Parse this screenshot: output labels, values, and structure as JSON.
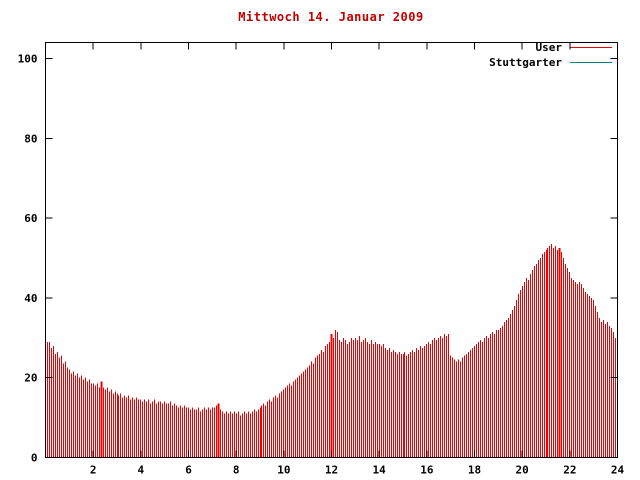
{
  "title": "Mittwoch 14. Januar 2009",
  "colors": {
    "title": "#c00000",
    "axis": "#000000",
    "background": "#ffffff",
    "user_series": "#ee0000",
    "stuttgarter_series": "#008080"
  },
  "chart_data": {
    "type": "bar",
    "style": "impulses",
    "title": "Mittwoch 14. Januar 2009",
    "xlabel": "",
    "ylabel": "",
    "x_unit": "hour_of_day",
    "interval_minutes": 5,
    "xlim": [
      0,
      24
    ],
    "ylim": [
      0,
      104
    ],
    "x_ticks": [
      2,
      4,
      6,
      8,
      10,
      12,
      14,
      16,
      18,
      20,
      22,
      24
    ],
    "y_ticks": [
      0,
      20,
      40,
      60,
      80,
      100
    ],
    "grid": false,
    "legend_position": "top-right-inside",
    "highlight_indices": [
      28,
      87,
      144,
      259
    ],
    "series": [
      {
        "name": "User",
        "color": "#ee0000",
        "style": "impulses",
        "values": [
          30,
          29,
          29,
          27.5,
          28,
          26,
          26.5,
          25,
          25.5,
          23.5,
          24,
          22.5,
          22,
          21,
          21.5,
          20.5,
          21,
          20,
          20.5,
          19.5,
          20,
          19,
          19.5,
          18.5,
          18.5,
          18,
          18.5,
          17.5,
          19,
          17.5,
          17,
          17.5,
          16.5,
          17,
          16,
          16.5,
          16,
          15.5,
          16,
          15,
          15.5,
          15,
          15.5,
          14.5,
          15,
          14.5,
          15,
          14.5,
          14.5,
          14,
          14.5,
          14,
          14.5,
          13.5,
          14,
          14.5,
          13.5,
          14,
          14,
          13.5,
          14,
          13.5,
          13.5,
          14,
          13,
          13.5,
          13,
          12.5,
          13,
          12.5,
          13,
          12.5,
          12.5,
          12,
          12.5,
          12,
          12,
          12.5,
          11.5,
          12,
          12.5,
          12,
          12.5,
          12,
          12.5,
          12.5,
          13,
          13.5,
          12,
          11.5,
          11,
          11.5,
          11,
          11.5,
          11,
          11.5,
          11,
          11.5,
          10.5,
          11,
          11.5,
          11,
          11.5,
          11,
          11.5,
          12,
          11.5,
          12,
          12.5,
          13,
          13.5,
          13,
          14,
          14.5,
          14,
          15,
          15.5,
          15,
          16,
          16.5,
          17,
          17.5,
          18,
          18.5,
          18,
          19,
          19.5,
          20,
          20.5,
          21,
          21.5,
          22,
          22.5,
          23,
          24,
          23.5,
          25,
          25.5,
          26,
          27,
          26.5,
          28,
          28.5,
          29,
          31,
          30,
          32,
          31.5,
          29.5,
          29,
          30,
          29.5,
          28.5,
          29,
          30,
          29.5,
          30,
          29.5,
          30.5,
          29,
          29.5,
          30,
          29,
          28.5,
          29.5,
          28.5,
          29,
          28.5,
          28.5,
          28,
          28.5,
          27.5,
          27,
          27.5,
          26.5,
          27,
          26.5,
          26,
          26.5,
          26,
          26,
          26.5,
          25.5,
          26,
          26.5,
          27,
          26.5,
          27.5,
          27,
          28,
          27.5,
          28,
          28.5,
          29,
          28.5,
          29.5,
          30,
          29.5,
          30,
          30.5,
          30,
          31,
          30.5,
          31,
          25.5,
          25,
          24.5,
          24,
          24.5,
          24,
          25,
          25.5,
          26,
          26.5,
          27,
          27.5,
          28,
          28.5,
          29,
          29.5,
          29,
          30,
          30.5,
          30,
          31,
          31.5,
          31,
          32,
          32,
          32.5,
          33,
          34,
          34.5,
          35,
          36,
          37,
          38,
          39.5,
          41,
          42,
          43,
          44,
          45,
          44.5,
          46,
          47,
          48,
          48.5,
          49.5,
          50,
          51,
          51.5,
          52,
          52.5,
          53,
          53.5,
          52.5,
          53,
          52,
          52.5,
          51.5,
          50,
          48.5,
          47.5,
          46.5,
          45,
          44.5,
          44,
          43.5,
          44,
          43.5,
          42.5,
          41.5,
          41,
          40.5,
          40,
          39.5,
          38,
          36.5,
          35,
          34,
          34.5,
          33.5,
          34,
          33,
          32.5,
          31.5,
          30
        ]
      },
      {
        "name": "Stuttgarter",
        "color": "#008080",
        "style": "lines",
        "values": []
      }
    ]
  }
}
